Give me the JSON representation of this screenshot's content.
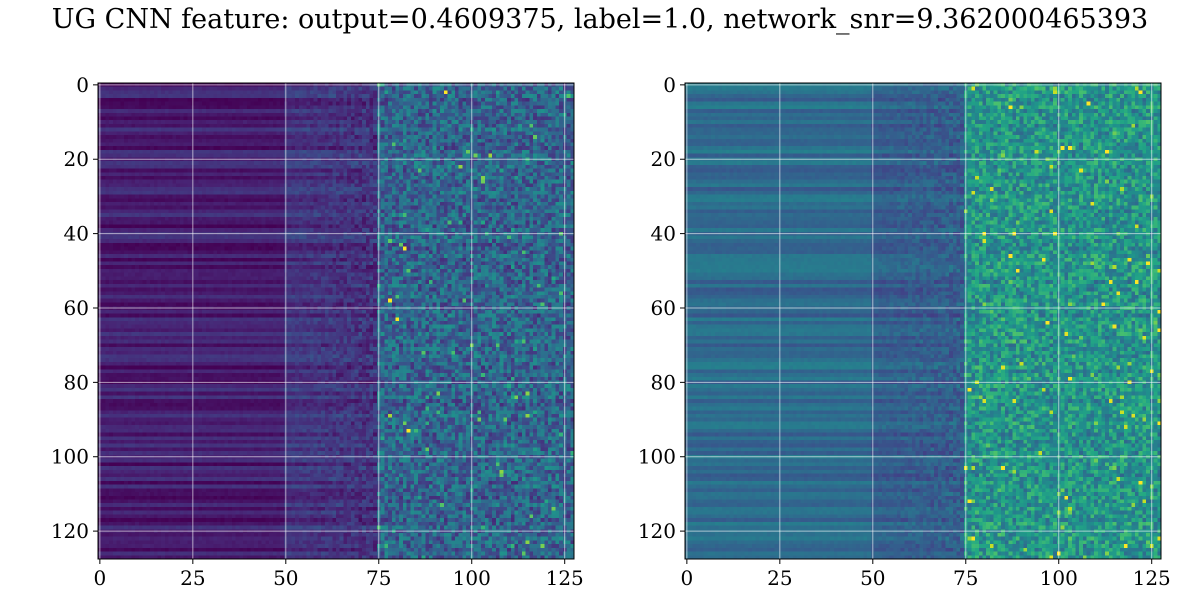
{
  "title": "UG CNN feature: output=0.4609375, label=1.0, network_snr=9.362000465393",
  "chart_data": [
    {
      "type": "heatmap",
      "colormap": "viridis",
      "grid": true,
      "shape": [
        128,
        128
      ],
      "xlim": [
        -0.5,
        127.5
      ],
      "ylim": [
        127.5,
        -0.5
      ],
      "xticks": [
        0,
        25,
        50,
        75,
        100,
        125
      ],
      "yticks": [
        0,
        20,
        40,
        60,
        80,
        100,
        120
      ],
      "xtick_labels": [
        "0",
        "25",
        "50",
        "75",
        "100",
        "125"
      ],
      "ytick_labels": [
        "0",
        "20",
        "40",
        "60",
        "80",
        "100",
        "120"
      ],
      "value_range": [
        0.0,
        1.0
      ],
      "description_values": {
        "low_frequency_region_cols": [
          0,
          50
        ],
        "low_region_level": 0.08,
        "mid_region_cols": [
          50,
          75
        ],
        "mid_region_level": 0.15,
        "high_region_cols": [
          75,
          127
        ],
        "high_region_level": 0.25,
        "peak_points": [
          [
            93,
            2
          ],
          [
            83,
            93
          ],
          [
            80,
            63
          ],
          [
            82,
            44
          ],
          [
            78,
            58
          ]
        ]
      }
    },
    {
      "type": "heatmap",
      "colormap": "viridis",
      "grid": true,
      "shape": [
        128,
        128
      ],
      "xlim": [
        -0.5,
        127.5
      ],
      "ylim": [
        127.5,
        -0.5
      ],
      "xticks": [
        0,
        25,
        50,
        75,
        100,
        125
      ],
      "yticks": [
        0,
        20,
        40,
        60,
        80,
        100,
        120
      ],
      "xtick_labels": [
        "0",
        "25",
        "50",
        "75",
        "100",
        "125"
      ],
      "ytick_labels": [
        "0",
        "20",
        "40",
        "60",
        "80",
        "100",
        "120"
      ],
      "value_range": [
        0.0,
        1.0
      ],
      "description_values": {
        "low_frequency_region_cols": [
          0,
          50
        ],
        "low_region_level": 0.35,
        "mid_region_cols": [
          50,
          75
        ],
        "mid_region_level": 0.3,
        "high_region_cols": [
          75,
          127
        ],
        "high_region_level": 0.45,
        "peak_points": [
          [
            80,
            40
          ],
          [
            88,
            40
          ],
          [
            113,
            18
          ],
          [
            76,
            82
          ],
          [
            85,
            103
          ]
        ]
      }
    }
  ]
}
